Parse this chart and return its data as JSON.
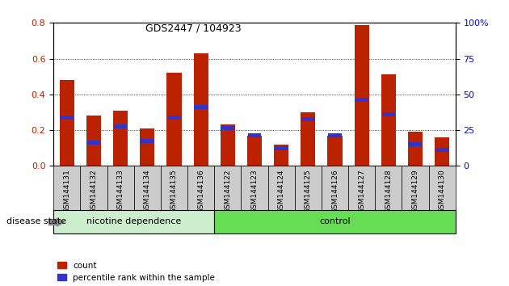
{
  "title": "GDS2447 / 104923",
  "samples": [
    "GSM144131",
    "GSM144132",
    "GSM144133",
    "GSM144134",
    "GSM144135",
    "GSM144136",
    "GSM144122",
    "GSM144123",
    "GSM144124",
    "GSM144125",
    "GSM144126",
    "GSM144127",
    "GSM144128",
    "GSM144129",
    "GSM144130"
  ],
  "count_values": [
    0.48,
    0.28,
    0.31,
    0.21,
    0.52,
    0.63,
    0.23,
    0.17,
    0.12,
    0.3,
    0.17,
    0.79,
    0.51,
    0.19,
    0.16
  ],
  "percentile_values": [
    0.27,
    0.13,
    0.22,
    0.14,
    0.27,
    0.33,
    0.21,
    0.17,
    0.1,
    0.26,
    0.17,
    0.37,
    0.29,
    0.12,
    0.09
  ],
  "group1_count": 6,
  "group2_count": 9,
  "group1_label": "nicotine dependence",
  "group2_label": "control",
  "disease_state_label": "disease state",
  "bar_color": "#bb2200",
  "percentile_color": "#3333cc",
  "ylim_left": [
    0,
    0.8
  ],
  "ylim_right": [
    0,
    100
  ],
  "yticks_left": [
    0,
    0.2,
    0.4,
    0.6,
    0.8
  ],
  "yticks_right": [
    0,
    25,
    50,
    75,
    100
  ],
  "bar_width": 0.55,
  "group1_bg": "#cceecc",
  "group2_bg": "#66dd55",
  "tick_bg": "#cccccc",
  "legend_count_label": "count",
  "legend_pct_label": "percentile rank within the sample"
}
